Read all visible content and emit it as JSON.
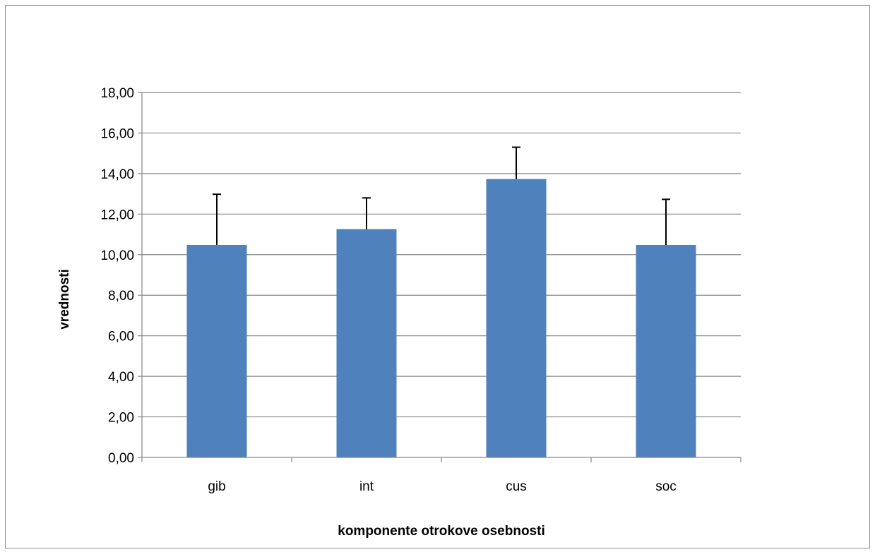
{
  "chart_data": {
    "type": "bar",
    "categories": [
      "gib",
      "int",
      "cus",
      "soc"
    ],
    "values": [
      10.48,
      11.26,
      13.73,
      10.48
    ],
    "error_upper": [
      12.98,
      12.8,
      15.3,
      12.73
    ],
    "xlabel": "komponente otrokove osebnosti",
    "ylabel": "vrednosti",
    "ylim": [
      0,
      18
    ],
    "yticks": [
      0,
      2,
      4,
      6,
      8,
      10,
      12,
      14,
      16,
      18
    ],
    "ytick_labels": [
      "0,00",
      "2,00",
      "4,00",
      "6,00",
      "8,00",
      "10,00",
      "12,00",
      "14,00",
      "16,00",
      "18,00"
    ],
    "grid": true,
    "legend": "none",
    "bar_color": "#4f81bd",
    "error_bar_color": "#000000",
    "grid_color": "#868686"
  }
}
